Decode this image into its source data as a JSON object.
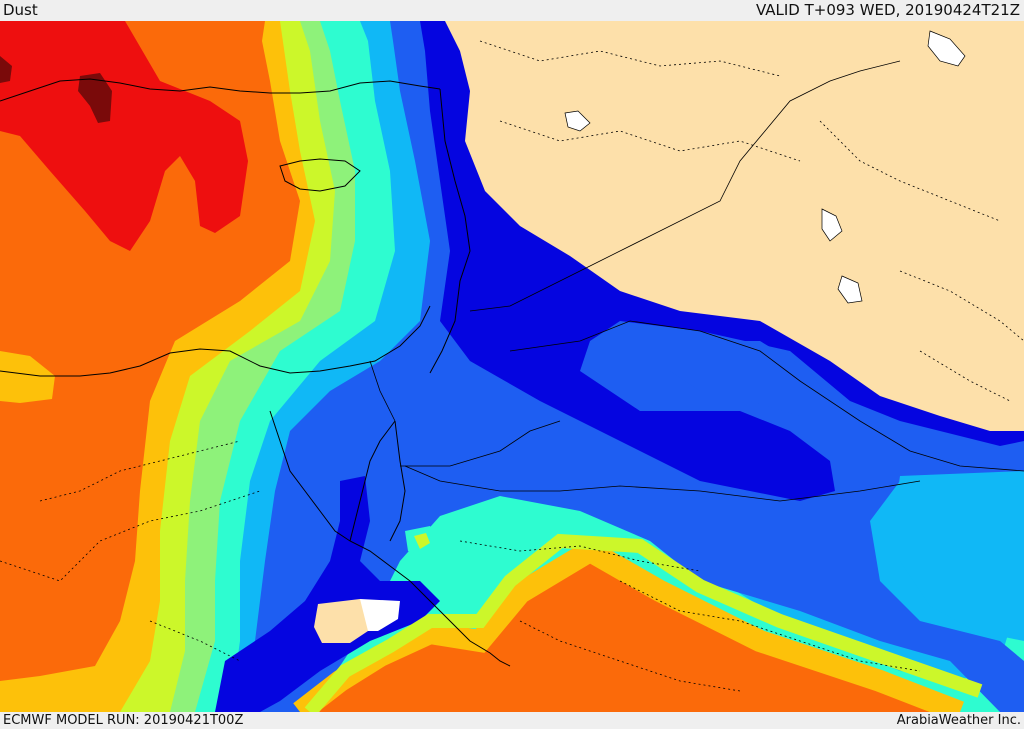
{
  "header": {
    "title": "Dust",
    "valid_time": "VALID T+093 WED, 20190424T21Z"
  },
  "footer": {
    "model_run": "ECMWF MODEL RUN: 20190421T00Z",
    "credit": "ArabiaWeather Inc."
  },
  "colors": {
    "land_no_data": "#fde0aa",
    "dark_red": "#7a0a0a",
    "red": "#ee0f0f",
    "orange": "#fb6a0a",
    "amber": "#fdc10a",
    "yellow_green": "#ccf72a",
    "light_green": "#8ef27a",
    "aquamarine": "#2efcd0",
    "sky_blue": "#10b8f6",
    "blue": "#1e5ef2",
    "dark_blue": "#0505e0",
    "lakes": "#ffffff",
    "borders": "#000000"
  }
}
